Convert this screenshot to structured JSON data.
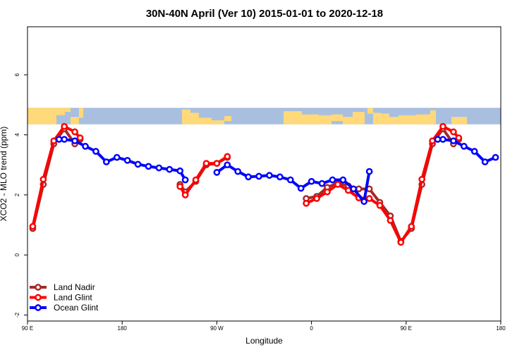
{
  "chart_data": {
    "type": "line",
    "title": "30N-40N April (Ver 10)   2015-01-01 to 2020-12-18",
    "xlabel": "Longitude",
    "ylabel": "XCO2 - MLO trend (ppm)",
    "xlim": [
      90,
      540
    ],
    "ylim": [
      -2.2,
      7.6
    ],
    "x_ticks": [
      {
        "value": 90,
        "label": "90 E"
      },
      {
        "value": 180,
        "label": "180"
      },
      {
        "value": 270,
        "label": "90 W"
      },
      {
        "value": 360,
        "label": "0"
      },
      {
        "value": 450,
        "label": "90 E"
      },
      {
        "value": 540,
        "label": "180"
      }
    ],
    "y_ticks": [
      {
        "value": -2,
        "label": "-2"
      },
      {
        "value": 0,
        "label": "0"
      },
      {
        "value": 2,
        "label": "2"
      },
      {
        "value": 4,
        "label": "4"
      },
      {
        "value": 6,
        "label": "6"
      }
    ],
    "grid": false,
    "legend_position": "bottom-left",
    "map_strip": {
      "y_range": [
        4.35,
        4.9
      ],
      "ocean_color": "#a9bfe0",
      "land_color": "#ffd97a"
    },
    "series": [
      {
        "name": "Land Nadir",
        "color": "#a52a2a",
        "segments": [
          [
            [
              95,
              0.88
            ],
            [
              105,
              2.35
            ],
            [
              115,
              3.7
            ],
            [
              125,
              4.2
            ],
            [
              135,
              3.7
            ],
            [
              140,
              3.85
            ]
          ],
          [
            [
              235,
              2.35
            ],
            [
              240,
              2.1
            ],
            [
              250,
              2.45
            ],
            [
              260,
              3.0
            ],
            [
              270,
              3.05
            ],
            [
              280,
              3.25
            ]
          ],
          [
            [
              355,
              1.88
            ],
            [
              365,
              1.95
            ],
            [
              375,
              2.25
            ],
            [
              385,
              2.4
            ],
            [
              395,
              2.3
            ],
            [
              405,
              2.2
            ],
            [
              415,
              2.2
            ],
            [
              425,
              1.75
            ],
            [
              435,
              1.3
            ],
            [
              445,
              0.45
            ],
            [
              455,
              0.88
            ],
            [
              465,
              2.35
            ],
            [
              475,
              3.7
            ],
            [
              485,
              4.2
            ],
            [
              495,
              3.7
            ],
            [
              500,
              3.85
            ]
          ]
        ]
      },
      {
        "name": "Land Glint",
        "color": "#ff0000",
        "segments": [
          [
            [
              95,
              0.95
            ],
            [
              105,
              2.52
            ],
            [
              115,
              3.8
            ],
            [
              125,
              4.28
            ],
            [
              135,
              4.1
            ],
            [
              140,
              3.9
            ]
          ],
          [
            [
              235,
              2.28
            ],
            [
              240,
              2.0
            ],
            [
              250,
              2.5
            ],
            [
              260,
              3.05
            ],
            [
              270,
              3.05
            ],
            [
              280,
              3.28
            ]
          ],
          [
            [
              355,
              1.72
            ],
            [
              365,
              1.88
            ],
            [
              375,
              2.1
            ],
            [
              385,
              2.35
            ],
            [
              395,
              2.15
            ],
            [
              405,
              1.9
            ],
            [
              415,
              1.88
            ],
            [
              425,
              1.65
            ],
            [
              435,
              1.15
            ],
            [
              445,
              0.42
            ],
            [
              455,
              0.95
            ],
            [
              465,
              2.52
            ],
            [
              475,
              3.8
            ],
            [
              485,
              4.28
            ],
            [
              495,
              4.1
            ],
            [
              500,
              3.9
            ]
          ]
        ]
      },
      {
        "name": "Ocean Glint",
        "color": "#0000ff",
        "segments": [
          [
            [
              120,
              3.85
            ],
            [
              125,
              3.85
            ],
            [
              135,
              3.8
            ],
            [
              145,
              3.62
            ],
            [
              155,
              3.45
            ],
            [
              165,
              3.1
            ],
            [
              175,
              3.25
            ],
            [
              185,
              3.15
            ],
            [
              195,
              3.02
            ],
            [
              205,
              2.95
            ],
            [
              215,
              2.9
            ],
            [
              225,
              2.85
            ],
            [
              235,
              2.8
            ],
            [
              240,
              2.5
            ]
          ],
          [
            [
              270,
              2.75
            ],
            [
              280,
              3.0
            ],
            [
              290,
              2.78
            ],
            [
              300,
              2.6
            ],
            [
              310,
              2.62
            ],
            [
              320,
              2.65
            ],
            [
              330,
              2.6
            ],
            [
              340,
              2.5
            ],
            [
              350,
              2.22
            ],
            [
              360,
              2.45
            ],
            [
              370,
              2.38
            ],
            [
              380,
              2.5
            ],
            [
              390,
              2.5
            ],
            [
              400,
              2.2
            ],
            [
              410,
              1.78
            ],
            [
              415,
              2.78
            ]
          ],
          [
            [
              480,
              3.85
            ],
            [
              485,
              3.85
            ],
            [
              495,
              3.8
            ],
            [
              505,
              3.62
            ],
            [
              515,
              3.45
            ],
            [
              525,
              3.1
            ],
            [
              535,
              3.25
            ]
          ]
        ]
      }
    ]
  }
}
